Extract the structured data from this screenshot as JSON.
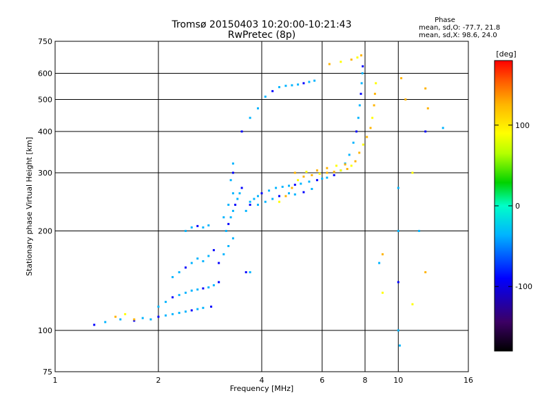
{
  "chart_data": {
    "type": "scatter",
    "title": "Tromsø 20150403 10:20:00-10:21:43",
    "subtitle": "RwPretec (8p)",
    "xlabel": "Frequency [MHz]",
    "ylabel": "Stationary phase Virtual Height [km]",
    "xscale": "log",
    "yscale": "log",
    "xlim": [
      1,
      16
    ],
    "ylim": [
      75,
      750
    ],
    "x_ticks": [
      1,
      2,
      4,
      6,
      8,
      10,
      16
    ],
    "x_tick_labels": [
      "1",
      "2",
      "4",
      "6",
      "8",
      "10",
      "16"
    ],
    "y_ticks": [
      75,
      100,
      200,
      300,
      400,
      500,
      600,
      750
    ],
    "y_tick_labels": [
      "75",
      "100",
      "200",
      "300",
      "400",
      "500",
      "600",
      "750"
    ],
    "grid": true,
    "phase_stats": {
      "title": "Phase",
      "line_o": "mean, sd,O: -77.7, 21.8",
      "line_x": "mean, sd,X:  98.6, 24.0"
    },
    "colorbar": {
      "label": "[deg]",
      "range": [
        -180,
        180
      ],
      "ticks": [
        100,
        0,
        -100
      ],
      "tick_labels": [
        "100",
        "0",
        "-100"
      ],
      "colors": [
        "#000000",
        "#3c0064",
        "#0000ff",
        "#00b4ff",
        "#00ffc8",
        "#00d200",
        "#b4ff00",
        "#ffff00",
        "#ffb400",
        "#ff5a00",
        "#ff0000"
      ]
    },
    "series": [
      {
        "name": "O",
        "phase_mean": -77.7,
        "phase_sd": 21.8,
        "points": [
          [
            1.3,
            104
          ],
          [
            1.4,
            106
          ],
          [
            1.55,
            108
          ],
          [
            1.7,
            107
          ],
          [
            1.8,
            109
          ],
          [
            1.9,
            108
          ],
          [
            2.0,
            110
          ],
          [
            2.1,
            111
          ],
          [
            2.2,
            112
          ],
          [
            2.3,
            113
          ],
          [
            2.4,
            114
          ],
          [
            2.5,
            115
          ],
          [
            2.6,
            116
          ],
          [
            2.7,
            117
          ],
          [
            2.85,
            118
          ],
          [
            2.0,
            118
          ],
          [
            2.1,
            122
          ],
          [
            2.2,
            126
          ],
          [
            2.3,
            128
          ],
          [
            2.4,
            130
          ],
          [
            2.5,
            132
          ],
          [
            2.6,
            133
          ],
          [
            2.7,
            134
          ],
          [
            2.8,
            135
          ],
          [
            2.9,
            137
          ],
          [
            3.0,
            140
          ],
          [
            2.2,
            145
          ],
          [
            2.3,
            150
          ],
          [
            2.4,
            155
          ],
          [
            2.5,
            160
          ],
          [
            2.6,
            165
          ],
          [
            2.7,
            162
          ],
          [
            2.8,
            168
          ],
          [
            2.9,
            175
          ],
          [
            2.4,
            200
          ],
          [
            2.5,
            205
          ],
          [
            2.6,
            207
          ],
          [
            2.7,
            205
          ],
          [
            2.8,
            208
          ],
          [
            3.0,
            160
          ],
          [
            3.1,
            170
          ],
          [
            3.2,
            180
          ],
          [
            3.3,
            190
          ],
          [
            3.15,
            200
          ],
          [
            3.2,
            210
          ],
          [
            3.25,
            220
          ],
          [
            3.3,
            230
          ],
          [
            3.35,
            240
          ],
          [
            3.4,
            250
          ],
          [
            3.45,
            260
          ],
          [
            3.5,
            270
          ],
          [
            3.1,
            220
          ],
          [
            3.2,
            240
          ],
          [
            3.3,
            260
          ],
          [
            3.25,
            285
          ],
          [
            3.3,
            300
          ],
          [
            3.3,
            320
          ],
          [
            3.6,
            230
          ],
          [
            3.7,
            240
          ],
          [
            3.8,
            250
          ],
          [
            3.9,
            255
          ],
          [
            4.0,
            260
          ],
          [
            4.2,
            265
          ],
          [
            4.4,
            270
          ],
          [
            4.6,
            272
          ],
          [
            4.8,
            274
          ],
          [
            5.0,
            276
          ],
          [
            5.2,
            278
          ],
          [
            5.5,
            282
          ],
          [
            5.8,
            285
          ],
          [
            6.0,
            288
          ],
          [
            6.2,
            290
          ],
          [
            6.5,
            295
          ],
          [
            6.8,
            305
          ],
          [
            7.0,
            320
          ],
          [
            7.2,
            340
          ],
          [
            7.4,
            370
          ],
          [
            7.55,
            400
          ],
          [
            7.65,
            440
          ],
          [
            7.72,
            480
          ],
          [
            7.78,
            520
          ],
          [
            7.82,
            560
          ],
          [
            7.86,
            600
          ],
          [
            7.88,
            630
          ],
          [
            3.7,
            245
          ],
          [
            3.9,
            240
          ],
          [
            4.1,
            245
          ],
          [
            4.3,
            250
          ],
          [
            4.5,
            255
          ],
          [
            4.8,
            260
          ],
          [
            5.0,
            258
          ],
          [
            5.3,
            262
          ],
          [
            5.6,
            268
          ],
          [
            4.1,
            510
          ],
          [
            4.3,
            530
          ],
          [
            4.5,
            545
          ],
          [
            4.7,
            550
          ],
          [
            4.9,
            552
          ],
          [
            5.1,
            555
          ],
          [
            5.3,
            560
          ],
          [
            5.5,
            565
          ],
          [
            5.7,
            570
          ],
          [
            3.5,
            400
          ],
          [
            3.7,
            440
          ],
          [
            3.9,
            470
          ],
          [
            3.6,
            150
          ],
          [
            3.7,
            150
          ],
          [
            8.8,
            160
          ],
          [
            10.0,
            270
          ],
          [
            10.0,
            200
          ],
          [
            10.0,
            140
          ],
          [
            10.0,
            100
          ],
          [
            10.1,
            90
          ],
          [
            12.0,
            400
          ],
          [
            13.5,
            410
          ],
          [
            11.5,
            200
          ]
        ]
      },
      {
        "name": "X",
        "phase_mean": 98.6,
        "phase_sd": 24.0,
        "points": [
          [
            4.5,
            245
          ],
          [
            4.7,
            255
          ],
          [
            4.9,
            270
          ],
          [
            5.1,
            285
          ],
          [
            5.3,
            292
          ],
          [
            5.6,
            295
          ],
          [
            5.9,
            298
          ],
          [
            6.2,
            300
          ],
          [
            6.5,
            302
          ],
          [
            6.8,
            305
          ],
          [
            7.1,
            308
          ],
          [
            7.3,
            315
          ],
          [
            7.5,
            325
          ],
          [
            7.7,
            345
          ],
          [
            7.9,
            365
          ],
          [
            8.1,
            385
          ],
          [
            8.3,
            410
          ],
          [
            8.4,
            440
          ],
          [
            8.5,
            480
          ],
          [
            8.55,
            520
          ],
          [
            8.6,
            560
          ],
          [
            5.0,
            300
          ],
          [
            5.4,
            302
          ],
          [
            5.8,
            305
          ],
          [
            6.2,
            310
          ],
          [
            6.6,
            315
          ],
          [
            7.0,
            318
          ],
          [
            1.5,
            110
          ],
          [
            1.6,
            112
          ],
          [
            1.7,
            108
          ],
          [
            6.3,
            640
          ],
          [
            6.8,
            650
          ],
          [
            7.3,
            660
          ],
          [
            7.6,
            670
          ],
          [
            7.8,
            680
          ],
          [
            9.0,
            170
          ],
          [
            9.0,
            130
          ],
          [
            10.5,
            500
          ],
          [
            10.2,
            580
          ],
          [
            11.0,
            300
          ],
          [
            12.0,
            540
          ],
          [
            12.0,
            150
          ],
          [
            11.0,
            120
          ],
          [
            12.2,
            470
          ]
        ]
      }
    ]
  }
}
